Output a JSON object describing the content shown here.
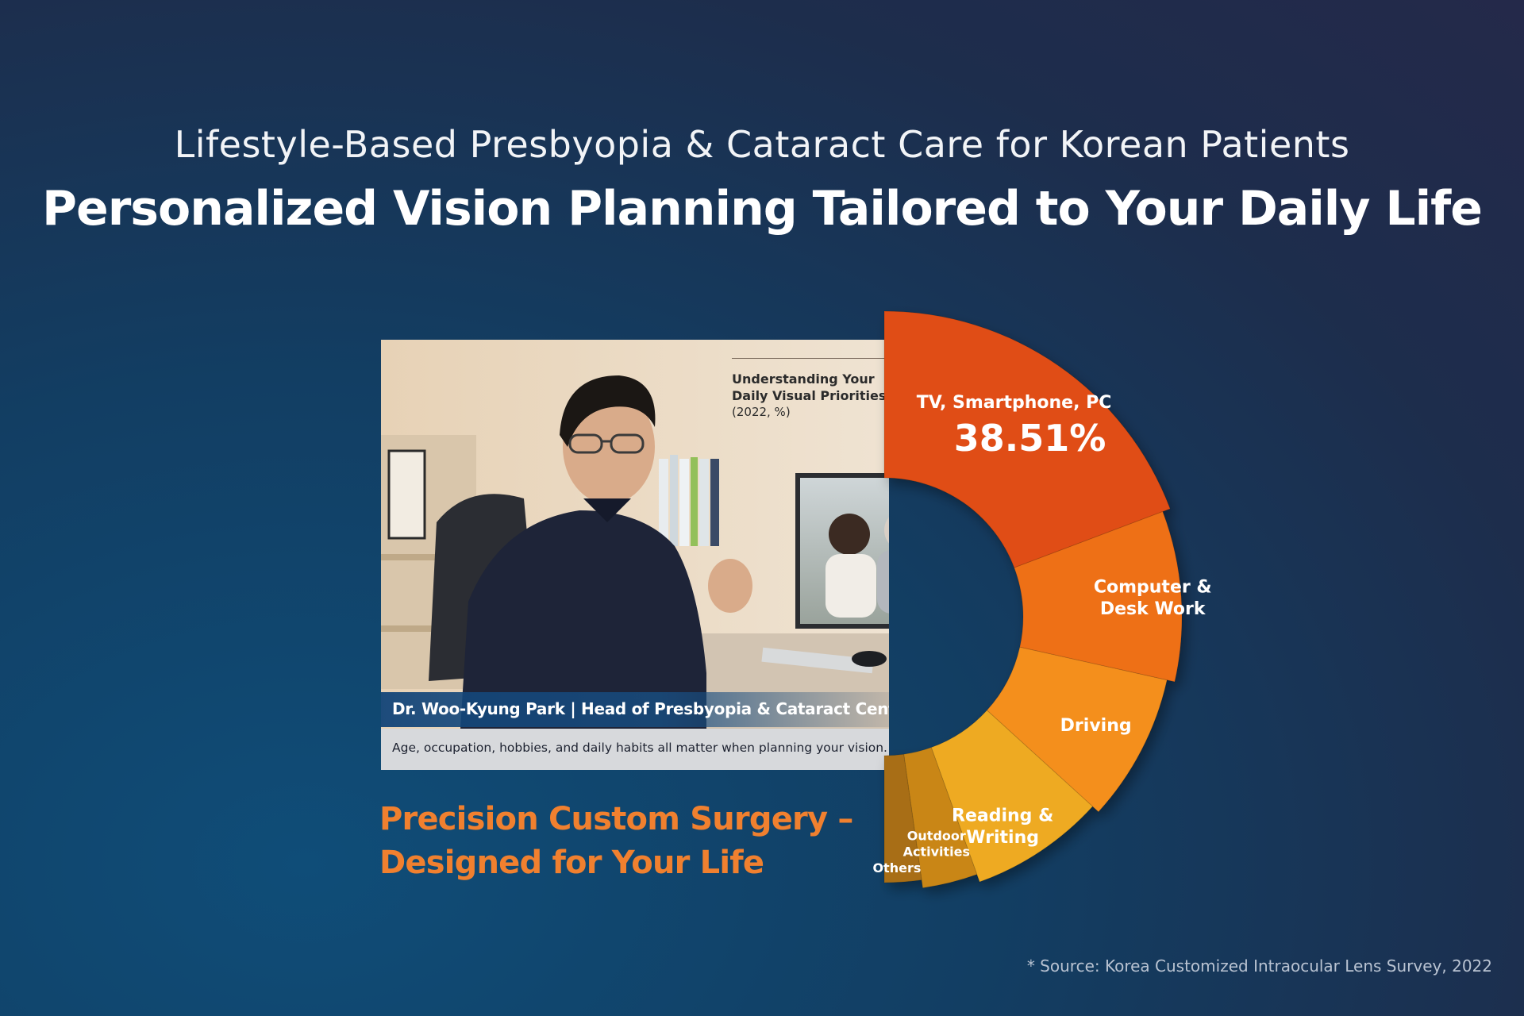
{
  "header": {
    "subtitle": "Lifestyle-Based Presbyopia & Cataract Care for Korean Patients",
    "title": "Personalized Vision Planning Tailored to Your Daily Life"
  },
  "photo": {
    "name_caption": "Dr. Woo-Kyung Park | Head of Presbyopia & Cataract Center",
    "description": "Age, occupation, hobbies, and daily habits all matter when planning your vision."
  },
  "chart_data": {
    "type": "pie",
    "title_lines": [
      "Understanding Your",
      "Daily Visual Priorities"
    ],
    "subtitle": "(2022, %)",
    "categories": [
      "TV, Smartphone, PC",
      "Computer & Desk Work",
      "Driving",
      "Reading & Writing",
      "Outdoor Activities",
      "Others"
    ],
    "values": [
      38.51,
      18.5,
      16.5,
      15.5,
      6.5,
      4.49
    ],
    "highlight_value_label": "38.51%",
    "colors": [
      "#e04e12",
      "#ee6f16",
      "#f48f1d",
      "#eeaa22",
      "#c98618",
      "#a86e13"
    ]
  },
  "tagline": {
    "line1": "Precision Custom Surgery –",
    "line2": "Designed for Your Life"
  },
  "footer": {
    "source": "*    Source: Korea Customized Intraocular Lens Survey, 2022"
  }
}
